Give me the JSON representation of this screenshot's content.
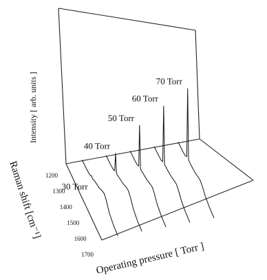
{
  "chart_data": {
    "type": "line",
    "subtype": "3d-waterfall",
    "title": "",
    "xlabel": "Raman shift [cm⁻¹]",
    "ylabel": "Operating pressure [ Torr ]",
    "zlabel": "Intensity [ arb. units ]",
    "x_ticks": [
      "1200",
      "1300",
      "1400",
      "1500",
      "1600",
      "1700"
    ],
    "x_range": [
      1200,
      1700
    ],
    "peak_position": 1332,
    "grid": false,
    "legend": "none",
    "series": [
      {
        "name": "30 Torr",
        "x": [
          1200,
          1260,
          1300,
          1320,
          1332,
          1345,
          1380,
          1440,
          1480,
          1510,
          1540,
          1580,
          1640,
          1700
        ],
        "values": [
          0.02,
          0.03,
          0.05,
          0.08,
          0.12,
          0.1,
          0.16,
          0.22,
          0.3,
          0.34,
          0.28,
          0.14,
          0.06,
          0.03
        ]
      },
      {
        "name": "40 Torr",
        "x": [
          1200,
          1260,
          1300,
          1320,
          1332,
          1345,
          1380,
          1440,
          1480,
          1510,
          1540,
          1580,
          1640,
          1700
        ],
        "values": [
          0.02,
          0.03,
          0.05,
          0.09,
          0.55,
          0.11,
          0.15,
          0.21,
          0.28,
          0.31,
          0.25,
          0.13,
          0.05,
          0.03
        ]
      },
      {
        "name": "50 Torr",
        "x": [
          1200,
          1260,
          1300,
          1320,
          1332,
          1345,
          1380,
          1440,
          1480,
          1510,
          1540,
          1580,
          1640,
          1700
        ],
        "values": [
          0.02,
          0.03,
          0.05,
          0.1,
          1.1,
          0.12,
          0.14,
          0.19,
          0.25,
          0.28,
          0.23,
          0.12,
          0.05,
          0.03
        ]
      },
      {
        "name": "60 Torr",
        "x": [
          1200,
          1260,
          1300,
          1320,
          1332,
          1345,
          1380,
          1440,
          1480,
          1510,
          1540,
          1580,
          1640,
          1700
        ],
        "values": [
          0.02,
          0.03,
          0.05,
          0.1,
          1.45,
          0.12,
          0.13,
          0.17,
          0.22,
          0.25,
          0.21,
          0.11,
          0.05,
          0.03
        ]
      },
      {
        "name": "70 Torr",
        "x": [
          1200,
          1260,
          1300,
          1320,
          1332,
          1345,
          1380,
          1440,
          1480,
          1510,
          1540,
          1580,
          1640,
          1700
        ],
        "values": [
          0.02,
          0.03,
          0.05,
          0.11,
          1.75,
          0.12,
          0.12,
          0.15,
          0.2,
          0.22,
          0.19,
          0.1,
          0.05,
          0.03
        ]
      }
    ]
  }
}
